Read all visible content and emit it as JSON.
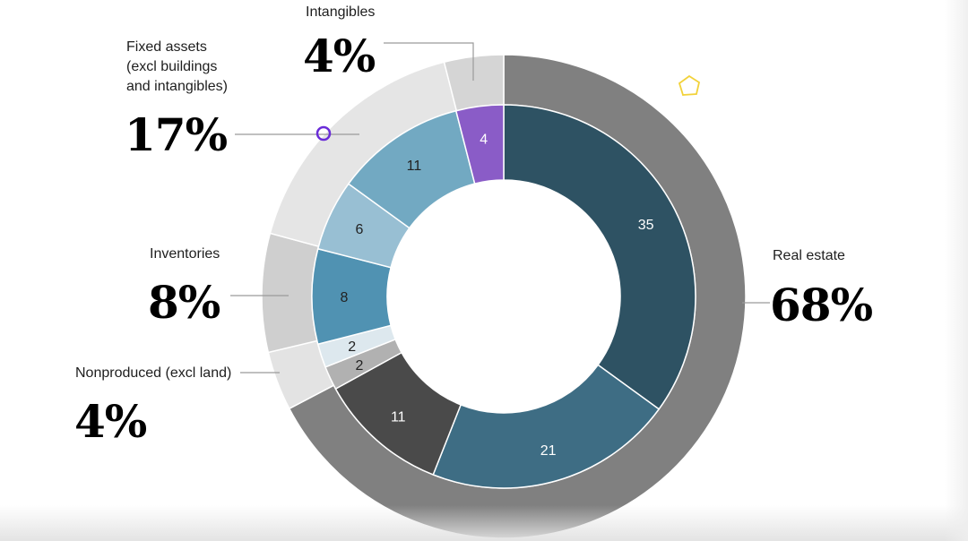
{
  "chart_data": {
    "type": "donut",
    "title": "",
    "outer_ring": [
      {
        "category": "Real estate",
        "percent_label": "68%",
        "value": 68,
        "color": "#808080"
      },
      {
        "category": "Nonproduced (excl land)",
        "percent_label": "4%",
        "value": 4,
        "color": "#e3e3e3"
      },
      {
        "category": "Inventories",
        "percent_label": "8%",
        "value": 8,
        "color": "#cfcfcf"
      },
      {
        "category": "Fixed assets\n(excl buildings\nand intangibles)",
        "percent_label": "17%",
        "value": 17,
        "color": "#e5e5e5"
      },
      {
        "category": "Intangibles",
        "percent_label": "4%",
        "value": 4,
        "color": "#d5d5d5"
      }
    ],
    "inner_ring": [
      {
        "group": "Real estate",
        "value": 35,
        "label": "35",
        "color": "#2e5263",
        "text_color": "#ffffff"
      },
      {
        "group": "Real estate",
        "value": 21,
        "label": "21",
        "color": "#3e6d84",
        "text_color": "#ffffff"
      },
      {
        "group": "Real estate",
        "value": 11,
        "label": "11",
        "color": "#4a4a4a",
        "text_color": "#ffffff"
      },
      {
        "group": "Nonproduced (excl land)",
        "value": 2,
        "label": "2",
        "color": "#b1b1b1",
        "text_color": "#222222"
      },
      {
        "group": "Nonproduced (excl land)",
        "value": 2,
        "label": "2",
        "color": "#dde8ee",
        "text_color": "#222222"
      },
      {
        "group": "Inventories",
        "value": 8,
        "label": "8",
        "color": "#5092b2",
        "text_color": "#222222"
      },
      {
        "group": "Fixed assets",
        "value": 6,
        "label": "6",
        "color": "#98bfd3",
        "text_color": "#222222"
      },
      {
        "group": "Fixed assets",
        "value": 11,
        "label": "11",
        "color": "#72a9c2",
        "text_color": "#222222"
      },
      {
        "group": "Intangibles",
        "value": 4,
        "label": "4",
        "color": "#8a5cc7",
        "text_color": "#ffffff"
      }
    ]
  }
}
